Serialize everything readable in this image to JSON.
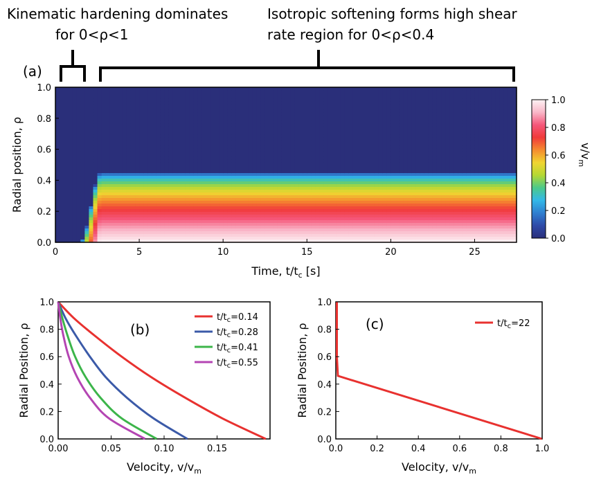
{
  "annotations": {
    "kinematic_line1": "Kinematic hardening dominates",
    "kinematic_line2_prefix": "for 0<",
    "kinematic_rho": "ρ",
    "kinematic_line2_suffix": "<1",
    "isotropic_line1": "Isotropic softening forms high shear",
    "isotropic_line2_prefix": "rate region for 0<",
    "isotropic_rho": "ρ",
    "isotropic_line2_suffix": "<0.4"
  },
  "chart_data": [
    {
      "id": "a",
      "type": "heatmap",
      "panel_label": "(a)",
      "xlabel_main": "Time, t/t",
      "xlabel_sub": "c",
      "xlabel_unit": " [s]",
      "ylabel": "Radial position, ρ",
      "xlim": [
        0,
        27.5
      ],
      "ylim": [
        0,
        1
      ],
      "xticks": [
        0,
        5,
        10,
        15,
        20,
        25
      ],
      "yticks": [
        "0.0",
        "0.2",
        "0.4",
        "0.6",
        "0.8",
        "1.0"
      ],
      "colorbar": {
        "label_main": "v/v",
        "label_sub": "m",
        "range": [
          0,
          1
        ],
        "ticks": [
          "0.0",
          "0.2",
          "0.4",
          "0.6",
          "0.8",
          "1.0"
        ],
        "colors": [
          "#2a2f7a",
          "#2e4aa8",
          "#2f7fd0",
          "#33b8e8",
          "#4cc98a",
          "#b5d833",
          "#f0d531",
          "#f58c2f",
          "#f03a3a",
          "#f5577a",
          "#f9b7c8",
          "#fdf2f4"
        ]
      },
      "field": {
        "description_free": true,
        "plateau_rho": 0.45,
        "onset_time": 1.5,
        "onset_width": 1.2,
        "profile_exponent": 0.5
      }
    },
    {
      "id": "b",
      "type": "line",
      "panel_label": "(b)",
      "xlabel_main": "Velocity, v/v",
      "xlabel_sub": "m",
      "ylabel": "Radial Position, ρ",
      "xlim": [
        0,
        0.2
      ],
      "ylim": [
        0,
        1
      ],
      "xticks": [
        "0.00",
        "0.05",
        "0.10",
        "0.15"
      ],
      "xtick_values": [
        0,
        0.05,
        0.1,
        0.15
      ],
      "yticks": [
        "0.0",
        "0.2",
        "0.4",
        "0.6",
        "0.8",
        "1.0"
      ],
      "legend_position": "top-right",
      "series": [
        {
          "name_main": "t/t",
          "name_sub": "c",
          "name_val": "=0.14",
          "color": "#e8312f",
          "x": [
            0.196,
            0.155,
            0.12,
            0.088,
            0.06,
            0.035,
            0.015,
            0.0
          ],
          "y": [
            0.0,
            0.15,
            0.3,
            0.45,
            0.6,
            0.75,
            0.88,
            1.0
          ]
        },
        {
          "name_main": "t/t",
          "name_sub": "c",
          "name_val": "=0.28",
          "color": "#3b5aa8",
          "x": [
            0.122,
            0.09,
            0.065,
            0.045,
            0.03,
            0.017,
            0.007,
            0.0
          ],
          "y": [
            0.0,
            0.15,
            0.3,
            0.45,
            0.6,
            0.75,
            0.88,
            1.0
          ]
        },
        {
          "name_main": "t/t",
          "name_sub": "c",
          "name_val": "=0.41",
          "color": "#3cb54a",
          "x": [
            0.093,
            0.06,
            0.04,
            0.026,
            0.016,
            0.009,
            0.004,
            0.0
          ],
          "y": [
            0.0,
            0.15,
            0.3,
            0.45,
            0.6,
            0.75,
            0.88,
            1.0
          ]
        },
        {
          "name_main": "t/t",
          "name_sub": "c",
          "name_val": "=0.55",
          "color": "#b445b3",
          "x": [
            0.082,
            0.048,
            0.03,
            0.018,
            0.01,
            0.005,
            0.002,
            0.0
          ],
          "y": [
            0.0,
            0.15,
            0.3,
            0.45,
            0.6,
            0.75,
            0.88,
            1.0
          ]
        }
      ]
    },
    {
      "id": "c",
      "type": "line",
      "panel_label": "(c)",
      "xlabel_main": "Velocity, v/v",
      "xlabel_sub": "m",
      "ylabel": "Radial Position, ρ",
      "xlim": [
        0,
        1
      ],
      "ylim": [
        0,
        1
      ],
      "xticks": [
        "0.0",
        "0.2",
        "0.4",
        "0.6",
        "0.8",
        "1.0"
      ],
      "xtick_values": [
        0,
        0.2,
        0.4,
        0.6,
        0.8,
        1.0
      ],
      "yticks": [
        "0.0",
        "0.2",
        "0.4",
        "0.6",
        "0.8",
        "1.0"
      ],
      "legend_position": "top-right",
      "series": [
        {
          "name_main": "t/t",
          "name_sub": "c",
          "name_val": "=22",
          "color": "#e8312f",
          "x": [
            1.0,
            0.01,
            0.005,
            0.005
          ],
          "y": [
            0.0,
            0.46,
            0.6,
            1.0
          ]
        }
      ]
    }
  ]
}
